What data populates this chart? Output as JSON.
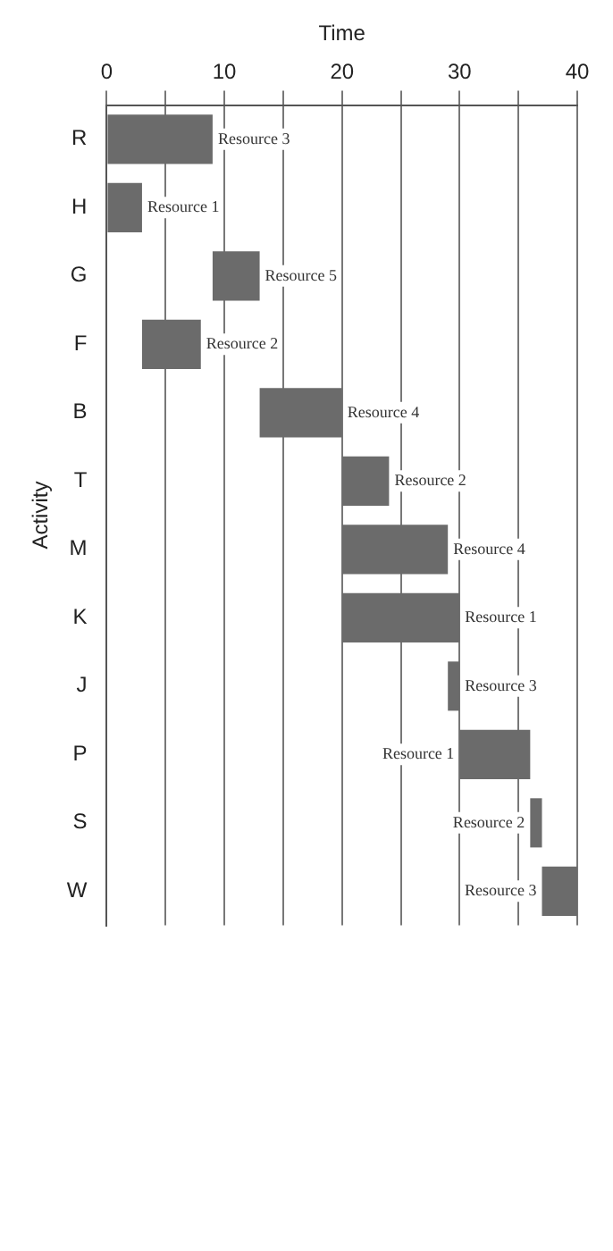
{
  "chart_data": {
    "type": "bar",
    "orientation": "horizontal",
    "xlabel": "Time",
    "ylabel": "Activity",
    "categories": [
      "R",
      "H",
      "G",
      "F",
      "B",
      "T",
      "M",
      "K",
      "J",
      "P",
      "S",
      "W"
    ],
    "base": [
      0,
      0,
      9,
      3,
      13,
      20,
      20,
      20,
      29,
      30,
      36,
      37
    ],
    "values": [
      9,
      3,
      4,
      5,
      7,
      4,
      9,
      10,
      1,
      6,
      1,
      3
    ],
    "value_labels": [
      "Resource 3",
      "Resource 1",
      "Resource 5",
      "Resource 2",
      "Resource 4",
      "Resource 2",
      "Resource 4",
      "Resource 1",
      "Resource 3",
      "Resource 1",
      "Resource 2",
      "Resource 3"
    ],
    "color": "#6b6b6b",
    "xlim": [
      0,
      40
    ],
    "xticks": [
      0,
      {
        "value": 5,
        "label": null
      },
      10,
      {
        "value": 15,
        "label": null
      },
      20,
      {
        "value": 25,
        "label": null
      },
      30,
      {
        "value": 35,
        "label": null
      },
      40
    ],
    "grid": "x",
    "legend": false
  }
}
